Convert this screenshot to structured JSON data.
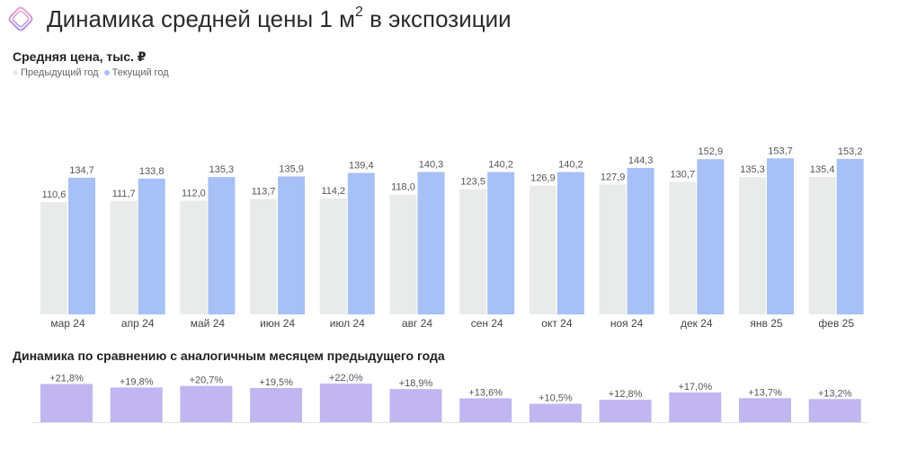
{
  "header": {
    "title": "Динамика средней цены 1 м",
    "title_sup": "2",
    "title_tail": " в экспозиции",
    "logo_icon": "rhombus-logo-icon"
  },
  "colors": {
    "previous": "#e8ebe9",
    "current": "#a7c0f5",
    "yoy": "#c1b6f0",
    "label": "#555555"
  },
  "chart_data": [
    {
      "type": "bar",
      "title": "Средняя цена, тыс. ₽",
      "legend_position": "top-left",
      "categories": [
        "мар 24",
        "апр 24",
        "май 24",
        "июн 24",
        "июл 24",
        "авг 24",
        "сен 24",
        "окт 24",
        "ноя 24",
        "дек 24",
        "янв 25",
        "фев 25"
      ],
      "series": [
        {
          "name": "Предыдущий год",
          "values": [
            110.6,
            111.7,
            112.0,
            113.7,
            114.2,
            118.0,
            123.5,
            126.9,
            127.9,
            130.7,
            135.3,
            135.4
          ],
          "labels": [
            "110,6",
            "111,7",
            "112,0",
            "113,7",
            "114,2",
            "118,0",
            "123,5",
            "126,9",
            "127,9",
            "130,7",
            "135,3",
            "135,4"
          ]
        },
        {
          "name": "Текущий год",
          "values": [
            134.7,
            133.8,
            135.3,
            135.9,
            139.4,
            140.3,
            140.2,
            140.2,
            144.3,
            152.9,
            153.7,
            153.2
          ],
          "labels": [
            "134,7",
            "133,8",
            "135,3",
            "135,9",
            "139,4",
            "140,3",
            "140,2",
            "140,2",
            "144,3",
            "152,9",
            "153,7",
            "153,2"
          ]
        }
      ],
      "ylim": [
        0,
        160
      ],
      "grid": false
    },
    {
      "type": "bar",
      "title": "Динамика по сравнению с аналогичным месяцем предыдущего года",
      "categories": [
        "мар 24",
        "апр 24",
        "май 24",
        "июн 24",
        "июл 24",
        "авг 24",
        "сен 24",
        "окт 24",
        "ноя 24",
        "дек 24",
        "янв 25",
        "фев 25"
      ],
      "values": [
        21.8,
        19.8,
        20.7,
        19.5,
        22.0,
        18.9,
        13.6,
        10.5,
        12.8,
        17.0,
        13.7,
        13.2
      ],
      "labels": [
        "+21,8%",
        "+19,8%",
        "+20,7%",
        "+19,5%",
        "+22,0%",
        "+18,9%",
        "+13,6%",
        "+10,5%",
        "+12,8%",
        "+17,0%",
        "+13,7%",
        "+13,2%"
      ],
      "ylim": [
        0,
        22
      ],
      "grid": false
    }
  ]
}
